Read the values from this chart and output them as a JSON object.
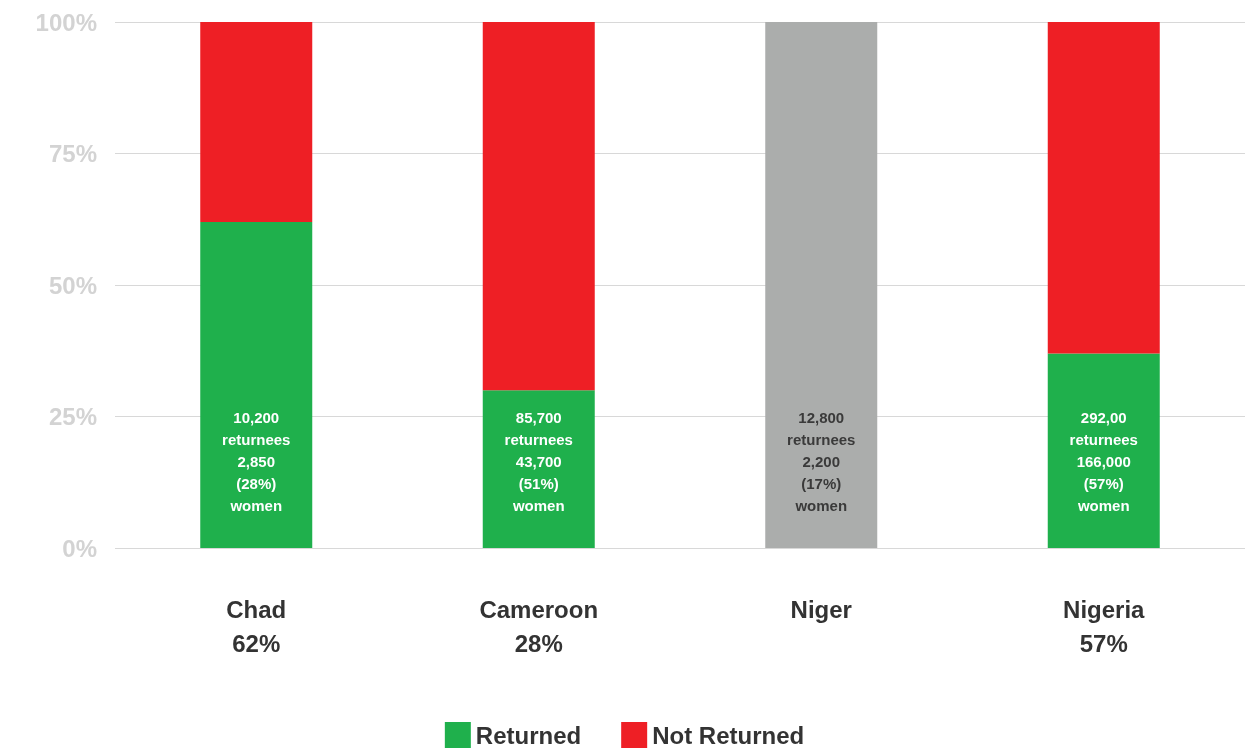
{
  "chart_data": {
    "type": "bar",
    "stacked": true,
    "categories": [
      "Chad\n62%",
      "Cameroon\n28%",
      "Niger",
      "Nigeria\n57%"
    ],
    "series": [
      {
        "name": "Returned",
        "color": "#1fb04c",
        "colors": [
          "#1fb04c",
          "#1fb04c",
          "#abadac",
          "#1fb04c"
        ],
        "values": [
          62,
          30,
          100,
          37
        ]
      },
      {
        "name": "Not Returned",
        "color": "#ee1f25",
        "values": [
          38,
          70,
          null,
          63
        ]
      }
    ],
    "annotations": [
      "10,200\nreturnees\n2,850\n(28%)\nwomen",
      "85,700\nreturnees\n43,700\n(51%)\nwomen",
      "12,800\nreturnees\n2,200\n(17%)\nwomen",
      "292,00\nreturnees\n166,000\n(57%)\nwomen"
    ],
    "ylim": [
      0,
      100
    ],
    "yticks": [
      {
        "value": 0,
        "label": "0%"
      },
      {
        "value": 25,
        "label": "25%"
      },
      {
        "value": 50,
        "label": "50%"
      },
      {
        "value": 75,
        "label": "75%"
      },
      {
        "value": 100,
        "label": "100%"
      }
    ],
    "grid": "y",
    "legend": "bottom"
  }
}
